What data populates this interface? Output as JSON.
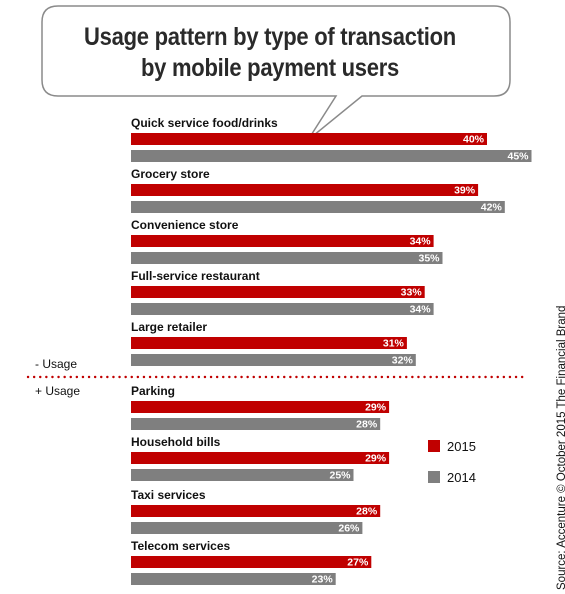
{
  "title": {
    "line1": "Usage pattern by type of transaction",
    "line2": "by mobile payment users"
  },
  "source": "Source: Accenture © October 2015 The Financial Brand",
  "colors": {
    "s2015": "#c00000",
    "s2014": "#7f7f7f",
    "divider": "#c00000"
  },
  "groups": {
    "minus": "- Usage",
    "plus": "+ Usage"
  },
  "chart_data": {
    "type": "bar",
    "orientation": "horizontal",
    "categories": [
      "Quick service food/drinks",
      "Grocery store",
      "Convenience store",
      "Full-service restaurant",
      "Large retailer",
      "Parking",
      "Household bills",
      "Taxi services",
      "Telecom services"
    ],
    "series": [
      {
        "name": "2015",
        "values": [
          40,
          39,
          34,
          33,
          31,
          29,
          29,
          28,
          27
        ]
      },
      {
        "name": "2014",
        "values": [
          45,
          42,
          35,
          34,
          32,
          28,
          25,
          26,
          23
        ]
      }
    ],
    "value_format": "{v}%",
    "xlim": [
      0,
      45
    ],
    "legend": "right",
    "grid": false
  }
}
